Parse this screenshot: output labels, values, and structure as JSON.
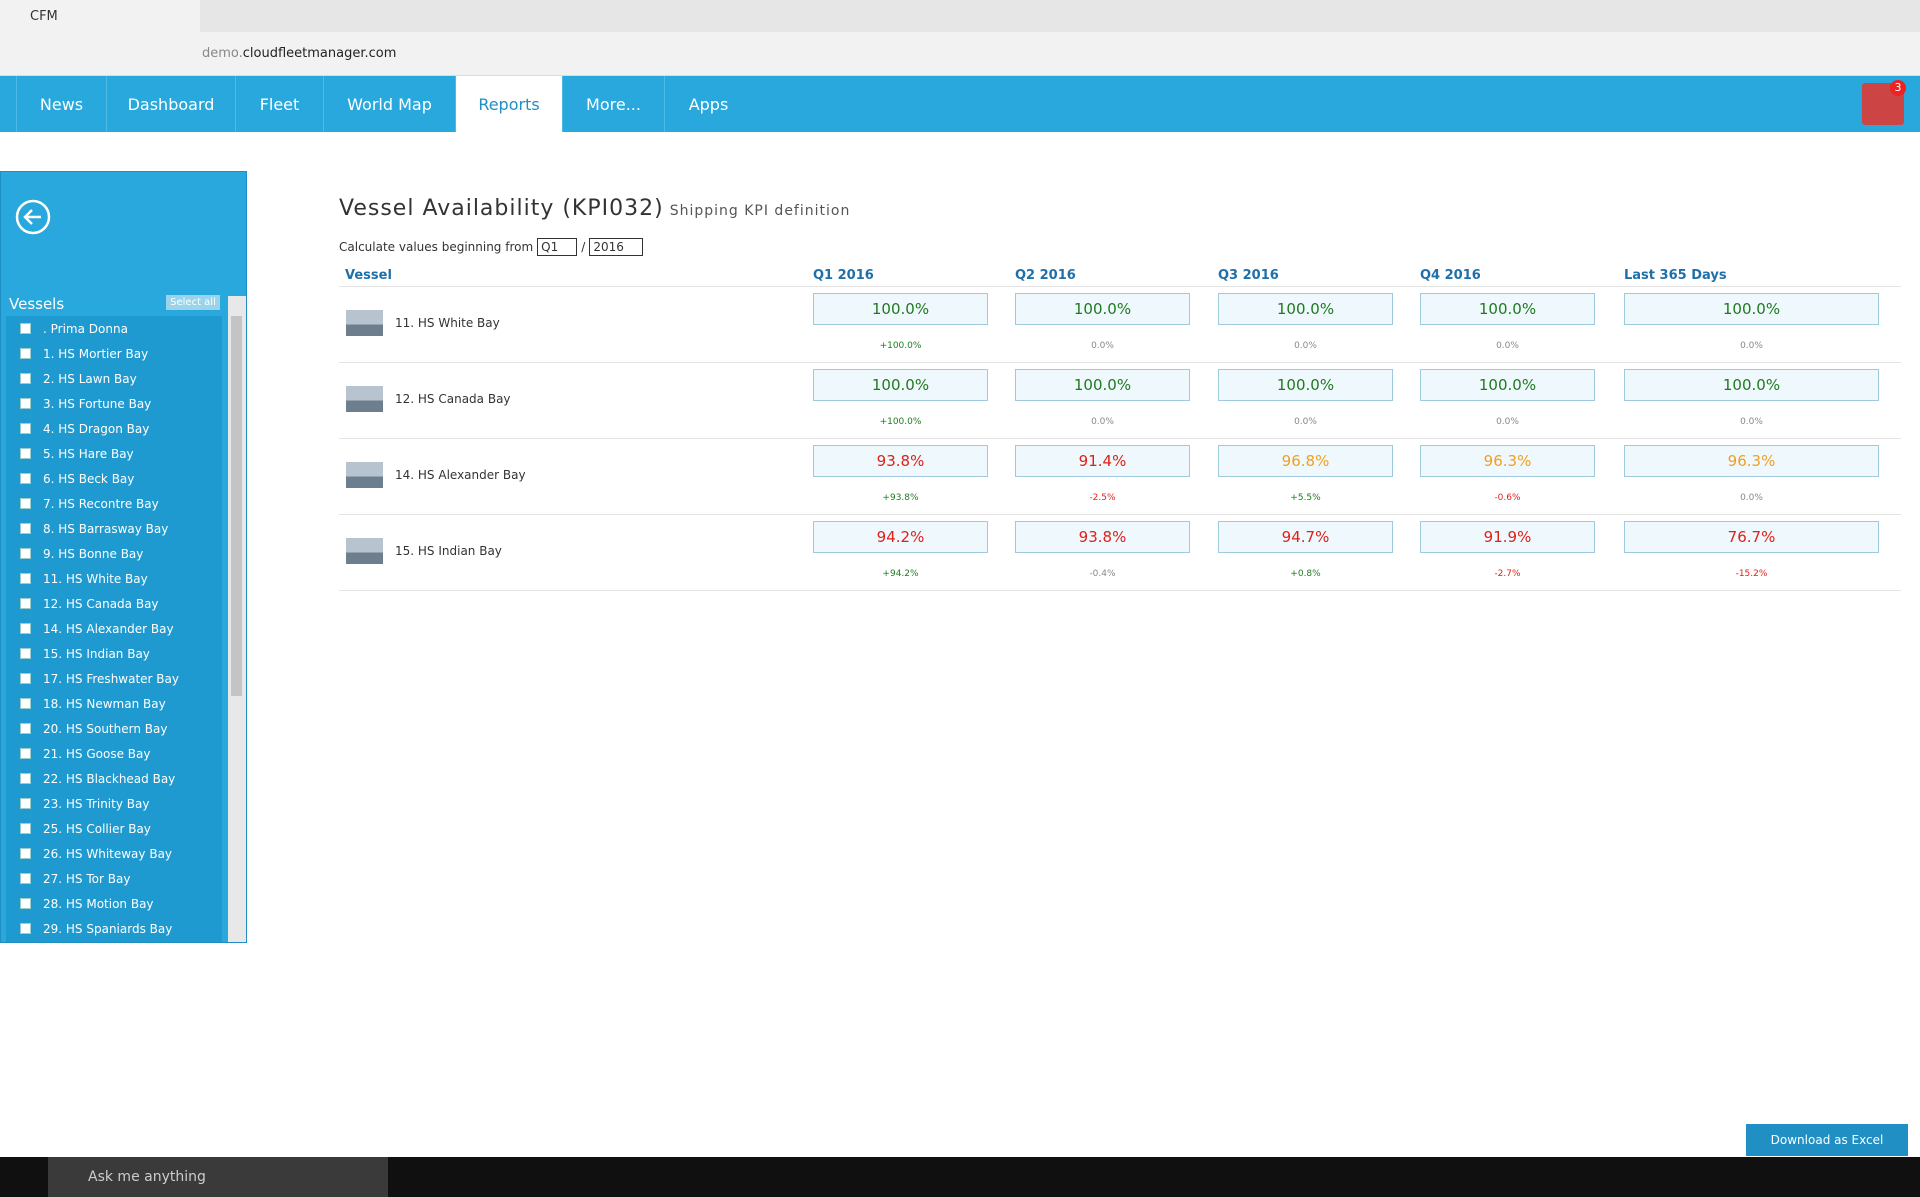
{
  "browser": {
    "tab_title": "CFM",
    "url_prefix": "demo.",
    "url_domain": "cloudfleetmanager.com"
  },
  "nav": {
    "items": [
      "News",
      "Dashboard",
      "Fleet",
      "World Map",
      "Reports",
      "More...",
      "Apps"
    ],
    "badge": "3"
  },
  "sidebar": {
    "title": "Vessels",
    "select_all": "Select all",
    "vessels": [
      ". Prima Donna",
      "1. HS Mortier Bay",
      "2. HS Lawn Bay",
      "3. HS Fortune Bay",
      "4. HS Dragon Bay",
      "5. HS Hare Bay",
      "6. HS Beck Bay",
      "7. HS Recontre Bay",
      "8. HS Barrasway Bay",
      "9. HS Bonne Bay",
      "11. HS White Bay",
      "12. HS Canada Bay",
      "14. HS Alexander Bay",
      "15. HS Indian Bay",
      "17. HS Freshwater Bay",
      "18. HS Newman Bay",
      "20. HS Southern Bay",
      "21. HS Goose Bay",
      "22. HS Blackhead Bay",
      "23. HS Trinity Bay",
      "25. HS Collier Bay",
      "26. HS Whiteway Bay",
      "27. HS Tor Bay",
      "28. HS Motion Bay",
      "29. HS Spaniards Bay"
    ]
  },
  "report": {
    "title": "Vessel Availability (KPI032)",
    "subtitle": "Shipping KPI definition",
    "filter_label": "Calculate values beginning from",
    "quarter": "Q1",
    "separator": "/",
    "year": "2016",
    "columns": [
      "Vessel",
      "Q1 2016",
      "Q2 2016",
      "Q3 2016",
      "Q4 2016",
      "Last 365 Days"
    ],
    "rows": [
      {
        "vessel": "11. HS White Bay",
        "cells": [
          {
            "value": "100.0%",
            "value_color": "#1f7a1f",
            "delta": "+100.0%",
            "delta_color": "#1f7a1f"
          },
          {
            "value": "100.0%",
            "value_color": "#1f7a1f",
            "delta": "0.0%",
            "delta_color": "#888888"
          },
          {
            "value": "100.0%",
            "value_color": "#1f7a1f",
            "delta": "0.0%",
            "delta_color": "#888888"
          },
          {
            "value": "100.0%",
            "value_color": "#1f7a1f",
            "delta": "0.0%",
            "delta_color": "#888888"
          },
          {
            "value": "100.0%",
            "value_color": "#1f7a1f",
            "delta": "0.0%",
            "delta_color": "#888888"
          }
        ]
      },
      {
        "vessel": "12. HS Canada Bay",
        "cells": [
          {
            "value": "100.0%",
            "value_color": "#1f7a1f",
            "delta": "+100.0%",
            "delta_color": "#1f7a1f"
          },
          {
            "value": "100.0%",
            "value_color": "#1f7a1f",
            "delta": "0.0%",
            "delta_color": "#888888"
          },
          {
            "value": "100.0%",
            "value_color": "#1f7a1f",
            "delta": "0.0%",
            "delta_color": "#888888"
          },
          {
            "value": "100.0%",
            "value_color": "#1f7a1f",
            "delta": "0.0%",
            "delta_color": "#888888"
          },
          {
            "value": "100.0%",
            "value_color": "#1f7a1f",
            "delta": "0.0%",
            "delta_color": "#888888"
          }
        ]
      },
      {
        "vessel": "14. HS Alexander Bay",
        "cells": [
          {
            "value": "93.8%",
            "value_color": "#e0201a",
            "delta": "+93.8%",
            "delta_color": "#1f7a1f"
          },
          {
            "value": "91.4%",
            "value_color": "#e0201a",
            "delta": "-2.5%",
            "delta_color": "#e0201a"
          },
          {
            "value": "96.8%",
            "value_color": "#f0a020",
            "delta": "+5.5%",
            "delta_color": "#1f7a1f"
          },
          {
            "value": "96.3%",
            "value_color": "#f0a020",
            "delta": "-0.6%",
            "delta_color": "#e0201a"
          },
          {
            "value": "96.3%",
            "value_color": "#f0a020",
            "delta": "0.0%",
            "delta_color": "#888888"
          }
        ]
      },
      {
        "vessel": "15. HS Indian Bay",
        "cells": [
          {
            "value": "94.2%",
            "value_color": "#e0201a",
            "delta": "+94.2%",
            "delta_color": "#1f7a1f"
          },
          {
            "value": "93.8%",
            "value_color": "#e0201a",
            "delta": "-0.4%",
            "delta_color": "#888888"
          },
          {
            "value": "94.7%",
            "value_color": "#e0201a",
            "delta": "+0.8%",
            "delta_color": "#1f7a1f"
          },
          {
            "value": "91.9%",
            "value_color": "#e0201a",
            "delta": "-2.7%",
            "delta_color": "#e0201a"
          },
          {
            "value": "76.7%",
            "value_color": "#e0201a",
            "delta": "-15.2%",
            "delta_color": "#e0201a"
          }
        ]
      }
    ]
  },
  "download": "Download as Excel",
  "taskbar": {
    "search": "Ask me anything"
  }
}
